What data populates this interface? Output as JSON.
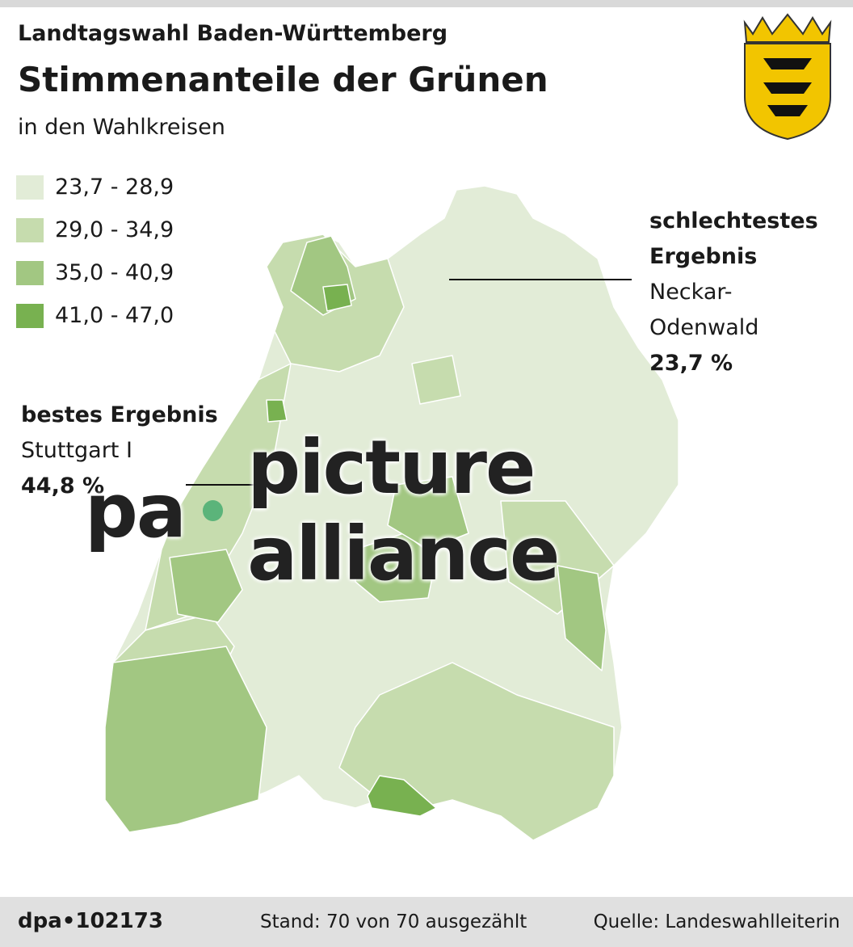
{
  "header": {
    "kicker": "Landtagswahl Baden-Württemberg",
    "title": "Stimmenanteile der Grünen",
    "subtitle": "in den Wahlkreisen"
  },
  "legend": [
    {
      "label": "23,7 - 28,9",
      "color": "#e2ecd7"
    },
    {
      "label": "29,0 - 34,9",
      "color": "#c6dcae"
    },
    {
      "label": "35,0 - 40,9",
      "color": "#a2c782"
    },
    {
      "label": "41,0 - 47,0",
      "color": "#78b150"
    }
  ],
  "annotations": {
    "worst": {
      "heading": "schlechtestes Ergebnis",
      "district": "Neckar-Odenwald",
      "value": "23,7 %"
    },
    "best": {
      "heading": "bestes Ergebnis",
      "district": "Stuttgart I",
      "value": "44,8 %"
    }
  },
  "watermark": {
    "left": "pa",
    "right": "picture alliance"
  },
  "footer": {
    "id": "dpa•102173",
    "status": "Stand: 70 von 70 ausgezählt",
    "source": "Quelle: Landeswahlleiterin"
  }
}
